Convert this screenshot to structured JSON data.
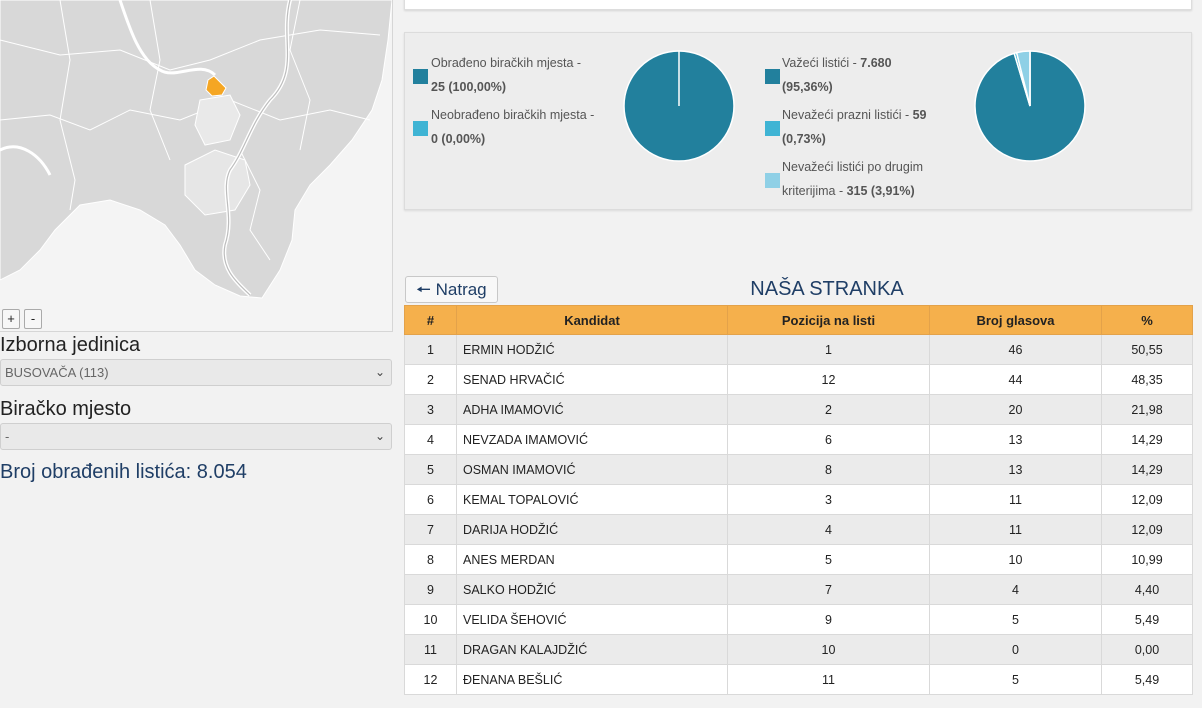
{
  "map": {
    "zoom_in": "+",
    "zoom_out": "-"
  },
  "filters": {
    "unit_label": "Izborna jedinica",
    "unit_value": "BUSOVAČA (113)",
    "station_label": "Biračko mjesto",
    "station_value": "-"
  },
  "processed_ballots": "Broj obrađenih listića: 8.054",
  "stats": {
    "stations": [
      {
        "label": "Obrađeno biračkih mjesta -",
        "value": "25 (100,00%)",
        "color": "#22809d",
        "fraction": 1.0
      },
      {
        "label": "Neobrađeno biračkih mjesta -",
        "value": "0 (0,00%)",
        "color": "#3fb4d4",
        "fraction": 0.0
      }
    ],
    "ballots": [
      {
        "label": "Važeći listići - ",
        "value_bold": "7.680",
        "value_rest": "(95,36%)",
        "color": "#22809d",
        "fraction": 0.9536
      },
      {
        "label": "Nevažeći prazni listići - ",
        "value_bold": "59",
        "value_rest": "(0,73%)",
        "color": "#3fb4d4",
        "fraction": 0.0073
      },
      {
        "label": "Nevažeći listići po drugim",
        "label2": "kriterijima - ",
        "value_bold": "315 (3,91%)",
        "value_rest": "",
        "color": "#8fd0e6",
        "fraction": 0.0391
      }
    ]
  },
  "table": {
    "back_label": "Natrag",
    "party_title": "NAŠA STRANKA",
    "headers": [
      "#",
      "Kandidat",
      "Pozicija na listi",
      "Broj glasova",
      "%"
    ],
    "rows": [
      [
        "1",
        "ERMIN HODŽIĆ",
        "1",
        "46",
        "50,55"
      ],
      [
        "2",
        "SENAD HRVAČIĆ",
        "12",
        "44",
        "48,35"
      ],
      [
        "3",
        "ADHA IMAMOVIĆ",
        "2",
        "20",
        "21,98"
      ],
      [
        "4",
        "NEVZADA IMAMOVIĆ",
        "6",
        "13",
        "14,29"
      ],
      [
        "5",
        "OSMAN IMAMOVIĆ",
        "8",
        "13",
        "14,29"
      ],
      [
        "6",
        "KEMAL TOPALOVIĆ",
        "3",
        "11",
        "12,09"
      ],
      [
        "7",
        "DARIJA HODŽIĆ",
        "4",
        "11",
        "12,09"
      ],
      [
        "8",
        "ANES MERDAN",
        "5",
        "10",
        "10,99"
      ],
      [
        "9",
        "SALKO HODŽIĆ",
        "7",
        "4",
        "4,40"
      ],
      [
        "10",
        "VELIDA ŠEHOVIĆ",
        "9",
        "5",
        "5,49"
      ],
      [
        "11",
        "DRAGAN KALAJDŽIĆ",
        "10",
        "0",
        "0,00"
      ],
      [
        "12",
        "ĐENANA BEŠLIĆ",
        "11",
        "5",
        "5,49"
      ]
    ]
  },
  "colors": {
    "accent": "#f5b04c",
    "title": "#1f3e66",
    "pie_primary": "#22809d"
  }
}
